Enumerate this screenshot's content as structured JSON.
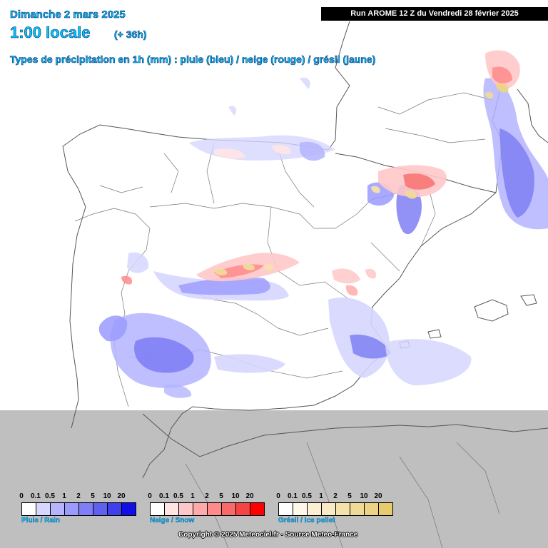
{
  "header": {
    "date": "Dimanche 2 mars 2025",
    "time": "1:00 locale",
    "lead": "(+ 36h)",
    "subtitle": "Types de précipitation en 1h (mm) : pluie (bleu) / neige (rouge) / grésil (jaune)",
    "run": "Run AROME 12 Z du Vendredi 28 février 2025"
  },
  "legends": [
    {
      "name": "rain",
      "label": "Pluie / Rain",
      "ticks": [
        "0",
        "0.1",
        "0.5",
        "1",
        "2",
        "5",
        "10",
        "20"
      ],
      "colors": [
        "#ffffff",
        "#d6d6ff",
        "#b4b4ff",
        "#9a9aff",
        "#7f7ff5",
        "#5f5ff0",
        "#3f3feb",
        "#1010e6"
      ]
    },
    {
      "name": "snow",
      "label": "Neige / Snow",
      "ticks": [
        "0",
        "0.1",
        "0.5",
        "1",
        "2",
        "5",
        "10",
        "20"
      ],
      "colors": [
        "#ffffff",
        "#ffe4e4",
        "#ffc8c8",
        "#ffaaaa",
        "#ff8a8a",
        "#f86a6a",
        "#f44444",
        "#ff0000"
      ]
    },
    {
      "name": "sleet",
      "label": "Grésil / Ice pellet",
      "ticks": [
        "0",
        "0.1",
        "0.5",
        "1",
        "2",
        "5",
        "10",
        "20"
      ],
      "colors": [
        "#ffffff",
        "#fff8ea",
        "#fbf0d4",
        "#f8eac4",
        "#f4e2aa",
        "#f0da98",
        "#ecd484",
        "#e8cc6c"
      ]
    }
  ],
  "copyright": "Copyright © 2025 Meteociel.fr - Source Meteo-France",
  "colors": {
    "sea_outside_domain": "#bfbfbf",
    "land": "#ffffff",
    "border": "#666666",
    "header_text": "#00c8ff"
  }
}
